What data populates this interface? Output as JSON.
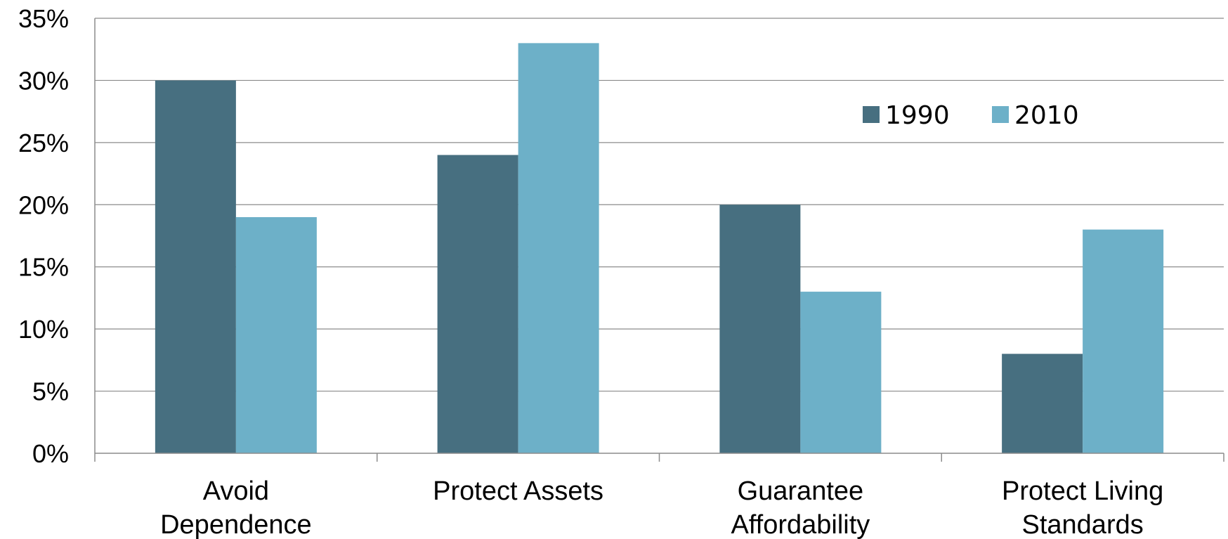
{
  "chart_data": {
    "type": "bar",
    "categories": [
      [
        "Avoid",
        "Dependence"
      ],
      [
        "Protect Assets"
      ],
      [
        "Guarantee",
        "Affordability"
      ],
      [
        "Protect Living",
        "Standards"
      ]
    ],
    "series": [
      {
        "name": "1990",
        "values": [
          30,
          24,
          20,
          8
        ],
        "color": "#476f80"
      },
      {
        "name": "2010",
        "values": [
          19,
          33,
          13,
          18
        ],
        "color": "#6db0c8"
      }
    ],
    "ylim": [
      0,
      35
    ],
    "yticks": [
      0,
      5,
      10,
      15,
      20,
      25,
      30,
      35
    ],
    "ytick_labels": [
      "0%",
      "5%",
      "10%",
      "15%",
      "20%",
      "25%",
      "30%",
      "35%"
    ],
    "title": "",
    "xlabel": "",
    "ylabel": "",
    "grid": true,
    "legend_position": "top-right"
  }
}
